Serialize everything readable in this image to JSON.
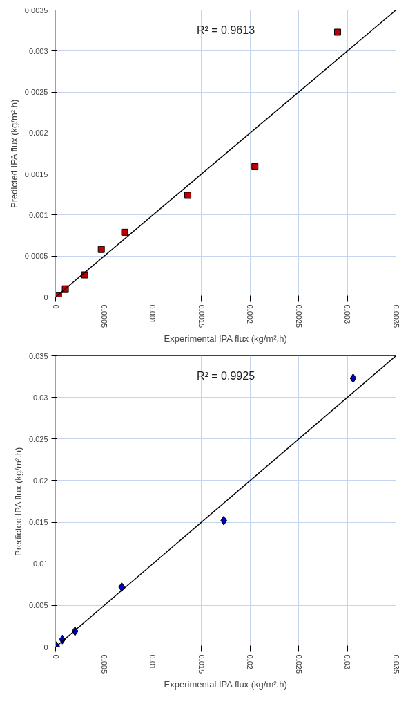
{
  "chart_data": [
    {
      "type": "scatter",
      "xlabel": "Experimental IPA flux (kg/m².h)",
      "ylabel": "Predicted IPA flux (kg/m².h)",
      "annotations": [
        "R² = 0.9613"
      ],
      "marker": "square",
      "grid": true,
      "xlim": [
        0,
        0.0035
      ],
      "ylim": [
        0,
        0.0035
      ],
      "xticks": [
        0,
        0.0005,
        0.001,
        0.0015,
        0.002,
        0.0025,
        0.003,
        0.0035
      ],
      "yticks": [
        0,
        0.0005,
        0.001,
        0.0015,
        0.002,
        0.0025,
        0.003,
        0.0035
      ],
      "series": [
        {
          "color": "#c00000",
          "x": [
            3e-05,
            0.0001,
            0.0003,
            0.00047,
            0.00071,
            0.00136,
            0.00205,
            0.0029
          ],
          "values": [
            2e-05,
            0.0001,
            0.00027,
            0.00058,
            0.00079,
            0.00124,
            0.00159,
            0.00323
          ]
        },
        {
          "type": "line",
          "marker": "none",
          "color": "#000000",
          "x": [
            0,
            0.0035
          ],
          "values": [
            0,
            0.0035
          ]
        }
      ]
    },
    {
      "type": "scatter",
      "xlabel": "Experimental IPA flux (kg/m².h)",
      "ylabel": "Predicted IPA flux (kg/m².h)",
      "annotations": [
        "R² = 0.9925"
      ],
      "marker": "diamond",
      "grid": true,
      "xlim": [
        0,
        0.035
      ],
      "ylim": [
        0,
        0.035
      ],
      "xticks": [
        0,
        0.005,
        0.01,
        0.015,
        0.02,
        0.025,
        0.03,
        0.035
      ],
      "yticks": [
        0,
        0.005,
        0.01,
        0.015,
        0.02,
        0.025,
        0.03,
        0.035
      ],
      "series": [
        {
          "color": "#0000c0",
          "x": [
            0.0001,
            0.0007,
            0.002,
            0.0068,
            0.0173,
            0.0306
          ],
          "values": [
            0.0001,
            0.0009,
            0.0019,
            0.0072,
            0.0152,
            0.0323
          ]
        },
        {
          "type": "line",
          "marker": "none",
          "color": "#000000",
          "x": [
            0,
            0.035
          ],
          "values": [
            0,
            0.035
          ]
        }
      ]
    }
  ]
}
